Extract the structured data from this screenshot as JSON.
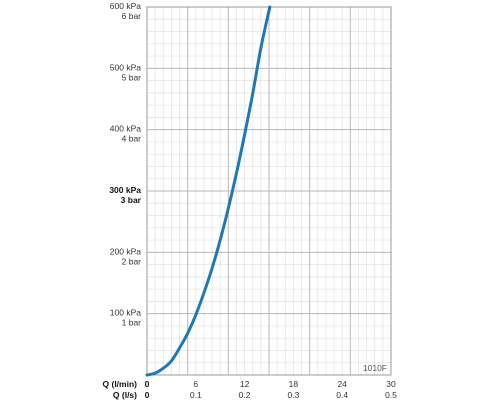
{
  "chart_data": {
    "type": "line",
    "code_label": "1010F",
    "x_axis_primary": {
      "label": "Q (l/min)",
      "range": [
        0,
        30
      ],
      "ticks": [
        "0",
        "6",
        "12",
        "18",
        "24",
        "30"
      ]
    },
    "x_axis_secondary": {
      "label": "Q (l/s)",
      "range": [
        0,
        0.5
      ],
      "ticks": [
        "0",
        "0.1",
        "0.2",
        "0.3",
        "0.4",
        "0.5"
      ]
    },
    "y_axis": {
      "range": [
        0,
        600
      ],
      "ticks": [
        {
          "value": 100,
          "kpa": "100 kPa",
          "bar": "1 bar",
          "emphasized": false
        },
        {
          "value": 200,
          "kpa": "200 kPa",
          "bar": "2 bar",
          "emphasized": false
        },
        {
          "value": 300,
          "kpa": "300 kPa",
          "bar": "3 bar",
          "emphasized": true
        },
        {
          "value": 400,
          "kpa": "400 kPa",
          "bar": "4 bar",
          "emphasized": false
        },
        {
          "value": 500,
          "kpa": "500 kPa",
          "bar": "5 bar",
          "emphasized": false
        },
        {
          "value": 600,
          "kpa": "600 kPa",
          "bar": "6 bar",
          "emphasized": false
        }
      ]
    },
    "grid": true,
    "series": [
      {
        "color": "#1f78b4",
        "x": [
          0,
          1,
          2,
          3,
          4,
          5,
          6,
          7,
          8,
          9,
          10,
          11,
          12,
          13,
          14,
          15.1
        ],
        "y": [
          0,
          3,
          11,
          23,
          44,
          68,
          98,
          134,
          174,
          220,
          272,
          329,
          392,
          459,
          533,
          600
        ]
      }
    ]
  }
}
